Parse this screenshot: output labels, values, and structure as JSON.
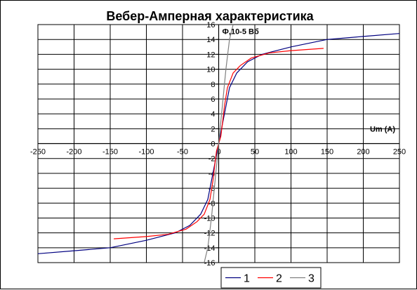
{
  "chart_data": {
    "type": "line",
    "title": "Вебер-Амперная характеристика",
    "ylabel": "Ф,10-5 Вб",
    "xlabel": "Um (A)",
    "xlim": [
      -250,
      250
    ],
    "ylim": [
      -16,
      16
    ],
    "x_ticks": [
      -250,
      -200,
      -150,
      -100,
      -50,
      0,
      50,
      100,
      150,
      200,
      250
    ],
    "y_ticks": [
      -16,
      -14,
      -12,
      -10,
      -8,
      -6,
      -4,
      -2,
      0,
      2,
      4,
      6,
      8,
      10,
      12,
      14,
      16
    ],
    "grid": true,
    "legend_position": "bottom",
    "series": [
      {
        "name": "1",
        "color": "#000080",
        "x": [
          -250,
          -200,
          -150,
          -100,
          -60,
          -40,
          -25,
          -15,
          -10,
          -5,
          -2,
          0,
          2,
          5,
          10,
          15,
          25,
          40,
          60,
          100,
          150,
          200,
          250
        ],
        "y": [
          -14.8,
          -14.4,
          -14,
          -13,
          -12,
          -11,
          -9.5,
          -7.5,
          -5,
          -2.5,
          -1,
          0,
          1,
          2.5,
          5,
          7.5,
          9.5,
          11,
          12,
          13,
          14,
          14.4,
          14.8
        ]
      },
      {
        "name": "2",
        "color": "#ff0000",
        "x": [
          -145,
          -100,
          -70,
          -45,
          -30,
          -20,
          -12,
          -8,
          -5,
          -3,
          -1,
          0,
          1,
          3,
          5,
          8,
          12,
          20,
          30,
          45,
          70,
          100,
          145
        ],
        "y": [
          -12.8,
          -12.5,
          -12.2,
          -11.5,
          -10.5,
          -9.5,
          -7.5,
          -5,
          -2.5,
          -1,
          -0.3,
          0,
          0.3,
          1,
          2.5,
          5,
          7.5,
          9.5,
          10.5,
          11.5,
          12.2,
          12.5,
          12.8
        ]
      },
      {
        "name": "3",
        "color": "#808080",
        "x": [
          -20,
          -15,
          -10,
          -6,
          -3,
          -1,
          0,
          1,
          3,
          6,
          10,
          15,
          20
        ],
        "y": [
          -16,
          -14,
          -10,
          -6,
          -3,
          -1,
          0,
          1,
          3,
          6,
          10,
          14,
          16
        ]
      }
    ]
  }
}
